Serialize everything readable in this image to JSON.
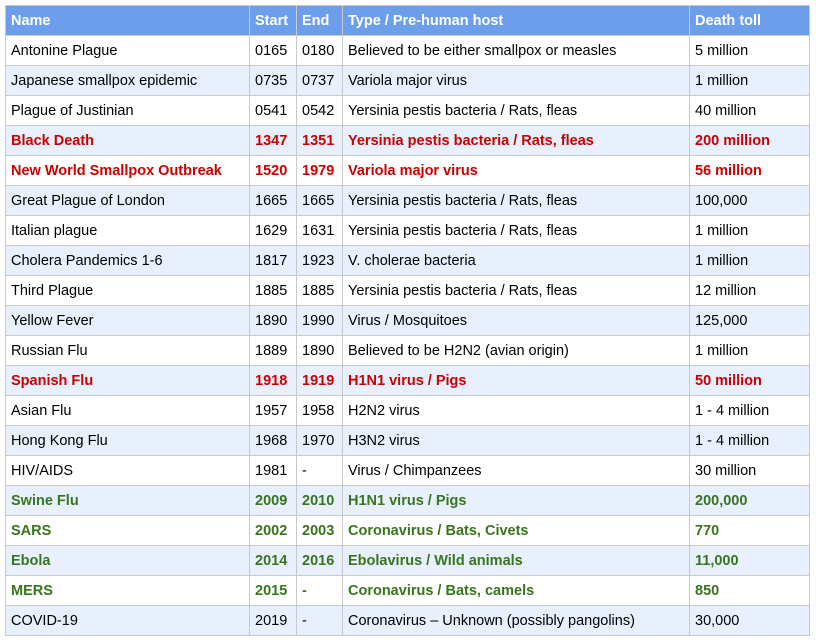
{
  "table": {
    "headers": {
      "name": "Name",
      "start": "Start",
      "end": "End",
      "type": "Type / Pre-human host",
      "toll": "Death toll"
    },
    "rows": [
      {
        "name": "Antonine Plague",
        "start": "0165",
        "end": "0180",
        "type": "Believed to be either smallpox or measles",
        "toll": "5 million",
        "highlight": "none"
      },
      {
        "name": "Japanese smallpox epidemic",
        "start": "0735",
        "end": "0737",
        "type": "Variola major virus",
        "toll": "1 million",
        "highlight": "none"
      },
      {
        "name": "Plague of Justinian",
        "start": "0541",
        "end": "0542",
        "type": "Yersinia pestis bacteria / Rats, fleas",
        "toll": "40 million",
        "highlight": "none"
      },
      {
        "name": "Black Death",
        "start": "1347",
        "end": "1351",
        "type": "Yersinia pestis bacteria / Rats, fleas",
        "toll": "200 million",
        "highlight": "red"
      },
      {
        "name": "New World Smallpox Outbreak",
        "start": "1520",
        "end": "1979",
        "type": "Variola major virus",
        "toll": "56 million",
        "highlight": "red"
      },
      {
        "name": "Great Plague of London",
        "start": "1665",
        "end": "1665",
        "type": "Yersinia pestis bacteria / Rats, fleas",
        "toll": "100,000",
        "highlight": "none"
      },
      {
        "name": "Italian plague",
        "start": "1629",
        "end": "1631",
        "type": "Yersinia pestis bacteria / Rats, fleas",
        "toll": "1 million",
        "highlight": "none"
      },
      {
        "name": "Cholera Pandemics 1-6",
        "start": "1817",
        "end": "1923",
        "type": "V. cholerae bacteria",
        "toll": "1 million",
        "highlight": "none"
      },
      {
        "name": "Third Plague",
        "start": "1885",
        "end": "1885",
        "type": "Yersinia pestis bacteria / Rats, fleas",
        "toll": "12 million",
        "highlight": "none"
      },
      {
        "name": "Yellow Fever",
        "start": "1890",
        "end": "1990",
        "type": "Virus / Mosquitoes",
        "toll": "125,000",
        "highlight": "none"
      },
      {
        "name": "Russian Flu",
        "start": "1889",
        "end": "1890",
        "type": "Believed to be H2N2 (avian origin)",
        "toll": "1 million",
        "highlight": "none"
      },
      {
        "name": "Spanish Flu",
        "start": "1918",
        "end": "1919",
        "type": "H1N1 virus / Pigs",
        "toll": "50 million",
        "highlight": "red"
      },
      {
        "name": "Asian Flu",
        "start": "1957",
        "end": "1958",
        "type": "H2N2 virus",
        "toll": "1 - 4 million",
        "highlight": "none"
      },
      {
        "name": "Hong Kong Flu",
        "start": "1968",
        "end": "1970",
        "type": "H3N2 virus",
        "toll": "1 - 4 million",
        "highlight": "none"
      },
      {
        "name": "HIV/AIDS",
        "start": "1981",
        "end": "-",
        "type": "Virus / Chimpanzees",
        "toll": "30 million",
        "highlight": "none"
      },
      {
        "name": "Swine Flu",
        "start": "2009",
        "end": "2010",
        "type": "H1N1 virus / Pigs",
        "toll": "200,000",
        "highlight": "green"
      },
      {
        "name": "SARS",
        "start": "2002",
        "end": "2003",
        "type": "Coronavirus / Bats, Civets",
        "toll": "770",
        "highlight": "green"
      },
      {
        "name": "Ebola",
        "start": "2014",
        "end": "2016",
        "type": "Ebolavirus / Wild animals",
        "toll": "11,000",
        "highlight": "green"
      },
      {
        "name": "MERS",
        "start": "2015",
        "end": "-",
        "type": "Coronavirus / Bats, camels",
        "toll": "850",
        "highlight": "green"
      },
      {
        "name": "COVID-19",
        "start": "2019",
        "end": "-",
        "type": "Coronavirus – Unknown (possibly pangolins)",
        "toll": "30,000",
        "highlight": "none"
      }
    ]
  },
  "colors": {
    "header_bg": "#6d9eeb",
    "header_text": "#ffffff",
    "band_row": "#e8f0fe",
    "red_highlight": "#cc0000",
    "green_highlight": "#38761d",
    "grid": "#c9c9c9"
  }
}
